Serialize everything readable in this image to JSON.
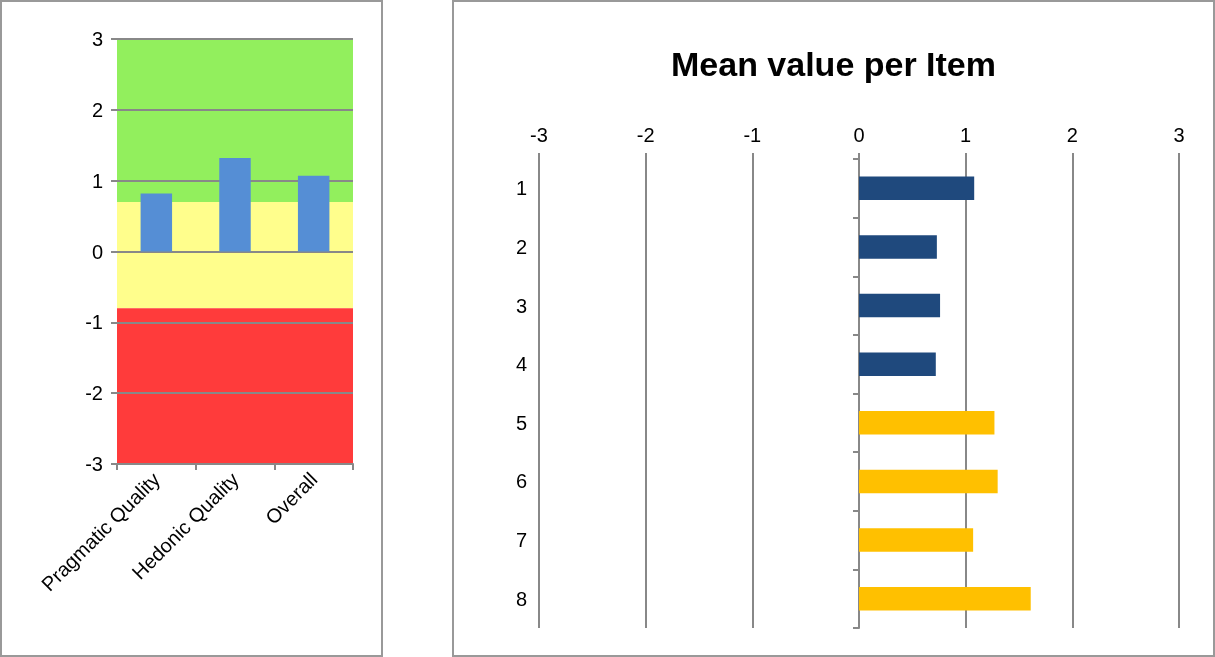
{
  "chart_data": [
    {
      "type": "bar",
      "categories": [
        "Pragmatic Quality",
        "Hedonic Quality",
        "Overall"
      ],
      "values": [
        0.82,
        1.32,
        1.07
      ],
      "color": "#558ed5",
      "ylim": [
        -3,
        3
      ],
      "yticks": [
        -3,
        -2,
        -1,
        0,
        1,
        2,
        3
      ],
      "grid": "y",
      "bands": [
        {
          "axis": "y",
          "from": 0.7,
          "to": 3,
          "color": "#92ef5d"
        },
        {
          "axis": "y",
          "from": -0.8,
          "to": 0.7,
          "color": "#fffe8c"
        },
        {
          "axis": "y",
          "from": -3,
          "to": -0.8,
          "color": "#ff3b3b"
        }
      ]
    },
    {
      "type": "bar",
      "orientation": "horizontal",
      "title": "Mean value per Item",
      "categories": [
        "1",
        "2",
        "3",
        "4",
        "5",
        "6",
        "7",
        "8"
      ],
      "values": [
        1.08,
        0.73,
        0.76,
        0.72,
        1.27,
        1.3,
        1.07,
        1.61
      ],
      "colors": [
        "#1f497d",
        "#1f497d",
        "#1f497d",
        "#1f497d",
        "#ffc000",
        "#ffc000",
        "#ffc000",
        "#ffc000"
      ],
      "xlim": [
        -3,
        3
      ],
      "xticks": [
        -3,
        -2,
        -1,
        0,
        1,
        2,
        3
      ],
      "grid": "x"
    }
  ]
}
